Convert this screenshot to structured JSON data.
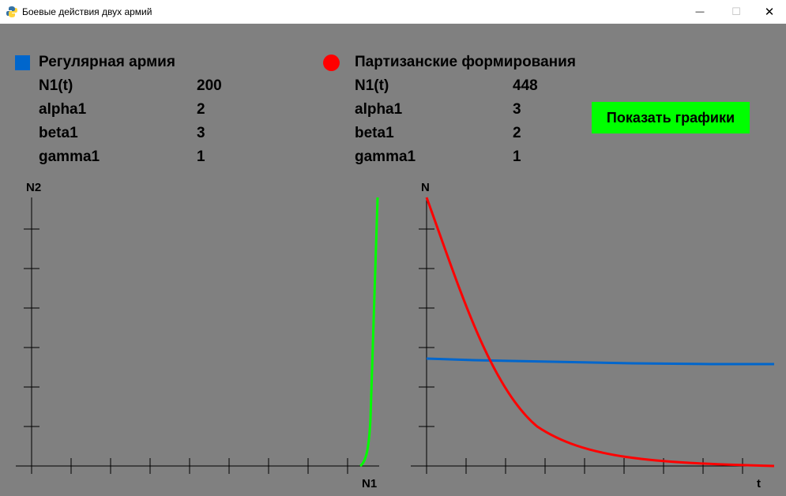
{
  "window": {
    "title": "Боевые действия двух армий",
    "minimize_symbol": "—",
    "maximize_symbol": "☐",
    "close_symbol": "✕",
    "icon": "python-logo-icon"
  },
  "army1": {
    "name": "Регулярная армия",
    "color": "#0066CC",
    "legend_icon": "blue-square-icon",
    "params": [
      {
        "label": "N1(t)",
        "value": "200"
      },
      {
        "label": "alpha1",
        "value": "2"
      },
      {
        "label": "beta1",
        "value": "3"
      },
      {
        "label": "gamma1",
        "value": "1"
      }
    ]
  },
  "army2": {
    "name": "Партизанские формирования",
    "color": "#FF0000",
    "legend_icon": "red-circle-icon",
    "params": [
      {
        "label": "N1(t)",
        "value": "448"
      },
      {
        "label": "alpha1",
        "value": "3"
      },
      {
        "label": "beta1",
        "value": "2"
      },
      {
        "label": "gamma1",
        "value": "1"
      }
    ]
  },
  "show_button": {
    "label": "Показать графики",
    "color": "#00FF00"
  },
  "phase_plot": {
    "ylabel": "N2",
    "xlabel": "N1",
    "curve_color": "#00FF00"
  },
  "time_plot": {
    "ylabel": "N",
    "xlabel": "t"
  }
}
